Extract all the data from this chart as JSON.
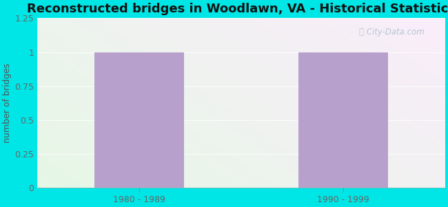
{
  "title": "Reconstructed bridges in Woodlawn, VA - Historical Statistics",
  "categories": [
    "1980 - 1989",
    "1990 - 1999"
  ],
  "values": [
    1,
    1
  ],
  "bar_color": "#b8a0cc",
  "ylabel": "number of bridges",
  "ylim": [
    0,
    1.25
  ],
  "yticks": [
    0,
    0.25,
    0.5,
    0.75,
    1,
    1.25
  ],
  "ytick_labels": [
    "0",
    "0.25",
    "0.5",
    "0.75",
    "1",
    "1.25"
  ],
  "background_outer": "#00e5e5",
  "background_inner_left": "#c8e8c8",
  "background_inner_right": "#eef4ee",
  "title_fontsize": 13,
  "ylabel_fontsize": 9,
  "tick_fontsize": 9,
  "title_color": "#111111",
  "ylabel_color": "#555555",
  "tick_color": "#666666",
  "watermark": "City-Data.com",
  "bar_positions": [
    0.25,
    0.75
  ],
  "bar_width": 0.22,
  "xlim": [
    0,
    1
  ]
}
